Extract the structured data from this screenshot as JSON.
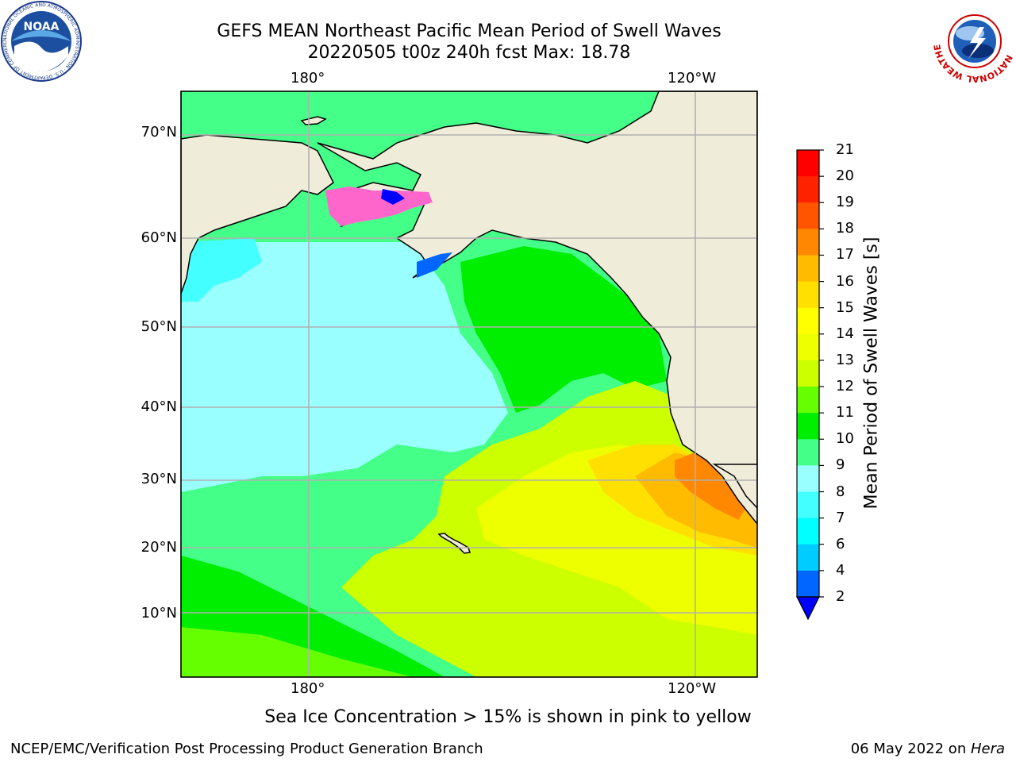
{
  "title_line1": "GEFS MEAN Northeast Pacific Mean Period of Swell Waves",
  "title_line2": "20220505 t00z 240h fcst   Max: 18.78",
  "lon_labels": {
    "top": [
      "180°",
      "120°W"
    ],
    "bottom": [
      "180°",
      "120°W"
    ]
  },
  "lat_labels": [
    "70°N",
    "60°N",
    "50°N",
    "40°N",
    "30°N",
    "20°N",
    "10°N"
  ],
  "colorbar": {
    "label": "Mean Period of Swell Waves [s]",
    "ticks": [
      "2",
      "4",
      "6",
      "7",
      "8",
      "9",
      "10",
      "11",
      "12",
      "13",
      "14",
      "15",
      "16",
      "17",
      "18",
      "19",
      "20",
      "21"
    ],
    "colors": [
      "#0000ff",
      "#0066ff",
      "#00ccff",
      "#00ffff",
      "#44ffff",
      "#99ffff",
      "#44ff88",
      "#00ee00",
      "#66ff00",
      "#ccff00",
      "#eeff00",
      "#ffff00",
      "#ffe000",
      "#ffbb00",
      "#ff8800",
      "#ff5500",
      "#ff2200",
      "#ff0000"
    ]
  },
  "note": "Sea Ice Concentration > 15% is shown in pink to yellow",
  "footer": {
    "left": "NCEP/EMC/Verification Post Processing Product Generation Branch",
    "date": "06 May 2022 on ",
    "machine": "Hera"
  },
  "logos": {
    "noaa_text": "NOAA",
    "noaa_ring": "NATIONAL OCEANIC AND ATMOSPHERIC ADMINISTRATION · U.S. DEPARTMENT OF COMMERCE",
    "nws_ring": "NATIONAL WEATHER SERVICE"
  }
}
